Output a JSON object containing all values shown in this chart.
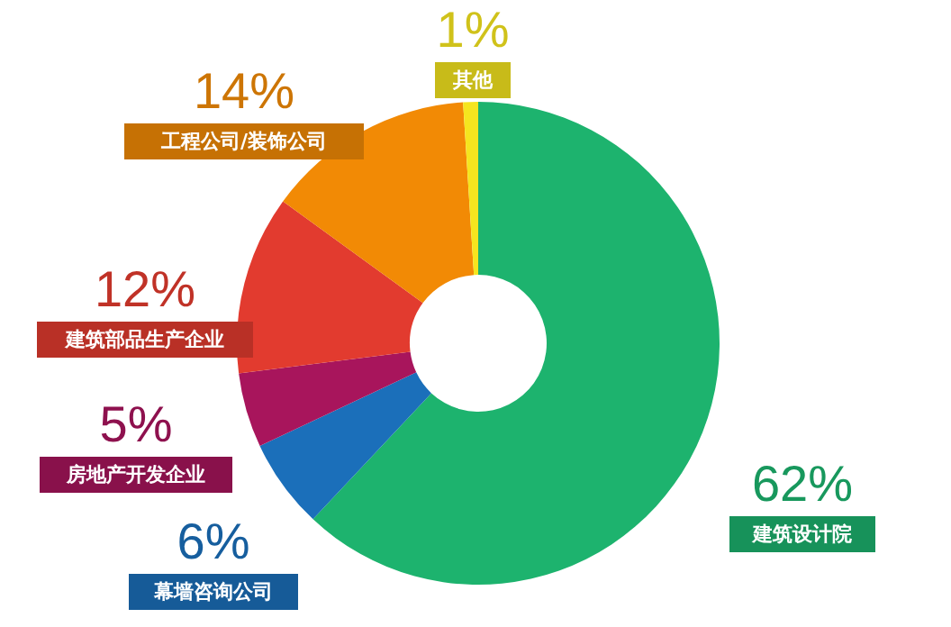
{
  "chart_data": {
    "type": "donut",
    "categories": [
      "建筑设计院",
      "幕墙咨询公司",
      "房地产开发企业",
      "建筑部品生产企业",
      "工程公司/装饰公司",
      "其他"
    ],
    "values": [
      62,
      6,
      5,
      12,
      14,
      1
    ],
    "colors": [
      "#1db36e",
      "#1b6fba",
      "#a8155c",
      "#e23b2f",
      "#f28a05",
      "#f5e51f"
    ],
    "value_labels": [
      "62%",
      "6%",
      "5%",
      "12%",
      "14%",
      "1%"
    ]
  }
}
